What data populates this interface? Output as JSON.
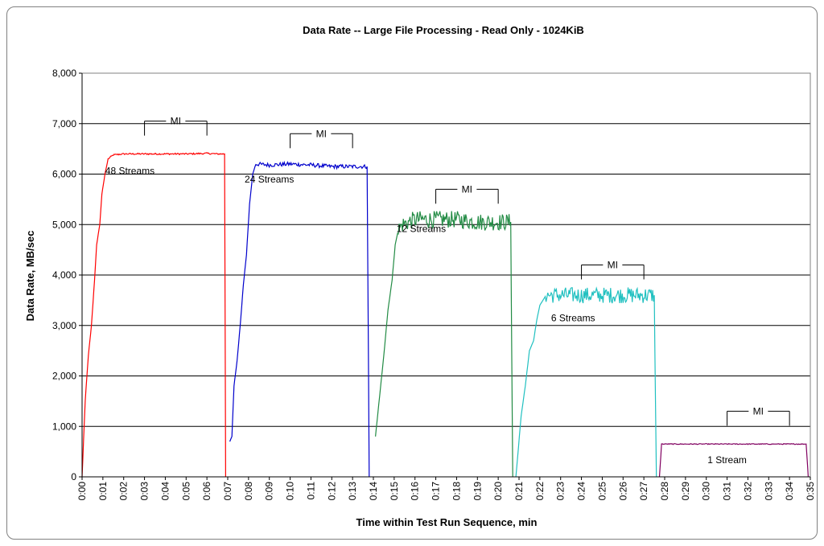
{
  "chart_data": {
    "type": "line",
    "title": "Data Rate -- Large File Processing - Read Only - 1024KiB",
    "xlabel": "Time within Test Run Sequence, min",
    "ylabel": "Data Rate, MB/sec",
    "ylim": [
      0,
      8000
    ],
    "y_ticks": [
      0,
      1000,
      2000,
      3000,
      4000,
      5000,
      6000,
      7000,
      8000
    ],
    "y_tick_labels": [
      "0",
      "1,000",
      "2,000",
      "3,000",
      "4,000",
      "5,000",
      "6,000",
      "7,000",
      "8,000"
    ],
    "x_tick_labels": [
      "0:00",
      "0:01",
      "0:02",
      "0:03",
      "0:04",
      "0:05",
      "0:06",
      "0:07",
      "0:08",
      "0:09",
      "0:10",
      "0:11",
      "0:12",
      "0:13",
      "0:14",
      "0:15",
      "0:16",
      "0:17",
      "0:18",
      "0:19",
      "0:20",
      "0:21",
      "0:22",
      "0:23",
      "0:24",
      "0:25",
      "0:26",
      "0:27",
      "0:28",
      "0:29",
      "0:30",
      "0:31",
      "0:32",
      "0:33",
      "0:34",
      "0:35"
    ],
    "grid": "horizontal",
    "series": [
      {
        "label": "48 Streams",
        "color": "#ff0000",
        "points": [
          [
            0,
            0
          ],
          [
            0.15,
            1500
          ],
          [
            0.3,
            2400
          ],
          [
            0.45,
            3000
          ],
          [
            0.6,
            3900
          ],
          [
            0.7,
            4600
          ],
          [
            0.85,
            5000
          ],
          [
            0.95,
            5600
          ],
          [
            1.1,
            6000
          ],
          [
            1.25,
            6300
          ],
          [
            1.5,
            6380
          ],
          [
            2,
            6400
          ],
          [
            3,
            6400
          ],
          [
            4,
            6400
          ],
          [
            5,
            6400
          ],
          [
            6,
            6410
          ],
          [
            6.5,
            6400
          ],
          [
            6.85,
            6400
          ],
          [
            6.9,
            0
          ]
        ],
        "noise": 15
      },
      {
        "label": "24 Streams",
        "color": "#0000cc",
        "points": [
          [
            7.1,
            700
          ],
          [
            7.2,
            800
          ],
          [
            7.3,
            1800
          ],
          [
            7.45,
            2300
          ],
          [
            7.6,
            3000
          ],
          [
            7.75,
            3800
          ],
          [
            7.9,
            4400
          ],
          [
            8.05,
            5400
          ],
          [
            8.2,
            6000
          ],
          [
            8.35,
            6200
          ],
          [
            9,
            6180
          ],
          [
            10,
            6200
          ],
          [
            11,
            6180
          ],
          [
            12,
            6150
          ],
          [
            13,
            6150
          ],
          [
            13.7,
            6150
          ],
          [
            13.8,
            0
          ]
        ],
        "noise": 40
      },
      {
        "label": "12 Streams",
        "color": "#228b44",
        "points": [
          [
            14.1,
            800
          ],
          [
            14.3,
            1600
          ],
          [
            14.5,
            2400
          ],
          [
            14.7,
            3300
          ],
          [
            14.9,
            3900
          ],
          [
            15.05,
            4600
          ],
          [
            15.2,
            4900
          ],
          [
            15.4,
            5000
          ],
          [
            16,
            5100
          ],
          [
            17,
            5100
          ],
          [
            18,
            5100
          ],
          [
            19,
            5050
          ],
          [
            20,
            5050
          ],
          [
            20.6,
            5050
          ],
          [
            20.7,
            0
          ]
        ],
        "noise": 170
      },
      {
        "label": "6 Streams",
        "color": "#20c0c0",
        "points": [
          [
            20.85,
            0
          ],
          [
            21.1,
            1200
          ],
          [
            21.3,
            1800
          ],
          [
            21.5,
            2500
          ],
          [
            21.7,
            2700
          ],
          [
            21.85,
            3100
          ],
          [
            22,
            3400
          ],
          [
            22.3,
            3600
          ],
          [
            23,
            3600
          ],
          [
            24,
            3600
          ],
          [
            25,
            3600
          ],
          [
            26,
            3600
          ],
          [
            27,
            3600
          ],
          [
            27.5,
            3600
          ],
          [
            27.6,
            0
          ]
        ],
        "noise": 160
      },
      {
        "label": "1 Stream",
        "color": "#800060",
        "points": [
          [
            27.75,
            0
          ],
          [
            27.85,
            650
          ],
          [
            29,
            650
          ],
          [
            30,
            650
          ],
          [
            31,
            650
          ],
          [
            32,
            650
          ],
          [
            33,
            650
          ],
          [
            34,
            650
          ],
          [
            34.8,
            650
          ],
          [
            34.9,
            0
          ]
        ],
        "noise": 8
      }
    ],
    "annotations": [
      {
        "text": "MI",
        "x_start": 3.0,
        "x_end": 6.0
      },
      {
        "text": "MI",
        "x_start": 10.0,
        "x_end": 13.0
      },
      {
        "text": "MI",
        "x_start": 17.0,
        "x_end": 20.0
      },
      {
        "text": "MI",
        "x_start": 24.0,
        "x_end": 27.0
      },
      {
        "text": "MI",
        "x_start": 31.0,
        "x_end": 34.0
      }
    ]
  }
}
